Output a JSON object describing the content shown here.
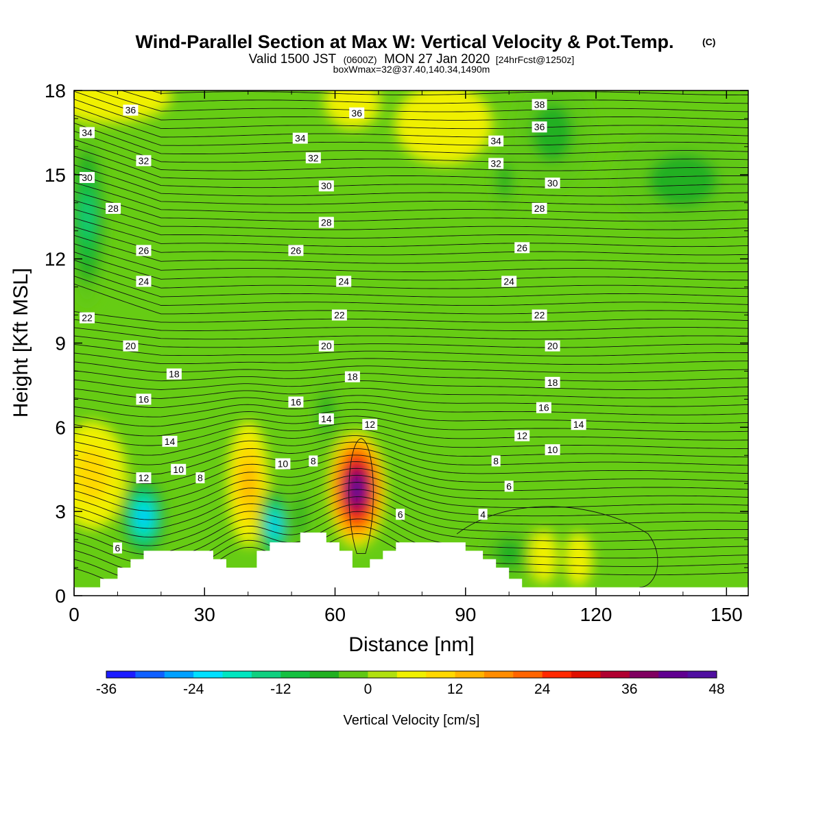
{
  "chart_data": {
    "type": "heatmap",
    "title": "Wind-Parallel Section at Max W: Vertical Velocity & Pot.Temp.",
    "title_mark": "(C)",
    "subtitle": {
      "pre": "Valid 1500 JST",
      "utc": "(0600Z)",
      "date": "MON 27 Jan 2020",
      "fcst": "[24hrFcst@1250z]"
    },
    "subtitle2": "boxWmax=32@37.40,140.34,1490m",
    "xlabel": "Distance [nm]",
    "ylabel": "Height [Kft MSL]",
    "xlim": [
      0,
      155
    ],
    "ylim": [
      0,
      18
    ],
    "xticks": [
      "0",
      "30",
      "60",
      "90",
      "120",
      "150"
    ],
    "yticks": [
      "0",
      "3",
      "6",
      "9",
      "12",
      "15",
      "18"
    ],
    "background_color": "#66cc14",
    "terrain_color": "#ffffff",
    "colorbar": {
      "title": "Vertical Velocity [cm/s]",
      "min": -36,
      "max": 48,
      "step": 4,
      "tick_labels": [
        "-36",
        "-24",
        "-12",
        "0",
        "12",
        "24",
        "36",
        "48"
      ],
      "colors": [
        "#1c1cff",
        "#1060ff",
        "#00a0ff",
        "#00e0ff",
        "#00e6c0",
        "#10d080",
        "#14c040",
        "#20b020",
        "#60c814",
        "#b0e010",
        "#f0f000",
        "#ffd800",
        "#ffb400",
        "#ff8c00",
        "#ff6400",
        "#ff2800",
        "#e01000",
        "#b00030",
        "#800060",
        "#600090",
        "#5010a0"
      ]
    },
    "terrain": [
      [
        0,
        0.3
      ],
      [
        6,
        0.3
      ],
      [
        6,
        0.6
      ],
      [
        10,
        0.6
      ],
      [
        10,
        1.0
      ],
      [
        13,
        1.0
      ],
      [
        13,
        1.3
      ],
      [
        16,
        1.3
      ],
      [
        16,
        1.6
      ],
      [
        32,
        1.6
      ],
      [
        32,
        1.3
      ],
      [
        35,
        1.3
      ],
      [
        35,
        1.0
      ],
      [
        42,
        1.0
      ],
      [
        42,
        1.6
      ],
      [
        45,
        1.6
      ],
      [
        45,
        1.9
      ],
      [
        52,
        1.9
      ],
      [
        52,
        2.25
      ],
      [
        58,
        2.25
      ],
      [
        58,
        1.9
      ],
      [
        61,
        1.9
      ],
      [
        61,
        1.6
      ],
      [
        64,
        1.6
      ],
      [
        64,
        1.0
      ],
      [
        68,
        1.0
      ],
      [
        68,
        1.3
      ],
      [
        71,
        1.3
      ],
      [
        71,
        1.6
      ],
      [
        74,
        1.6
      ],
      [
        74,
        1.9
      ],
      [
        90,
        1.9
      ],
      [
        90,
        1.6
      ],
      [
        94,
        1.6
      ],
      [
        94,
        1.3
      ],
      [
        97,
        1.3
      ],
      [
        97,
        1.0
      ],
      [
        100,
        1.0
      ],
      [
        100,
        0.6
      ],
      [
        103,
        0.6
      ],
      [
        103,
        0.3
      ],
      [
        155,
        0.3
      ]
    ],
    "w_cells": [
      {
        "x": 65,
        "y": 3.8,
        "sx": 4.2,
        "sy": 1.3,
        "value": 48
      },
      {
        "x": 4,
        "y": 4.3,
        "sx": 5,
        "sy": 1.2,
        "value": 8
      },
      {
        "x": 16,
        "y": 2.8,
        "sx": 3.5,
        "sy": 1.0,
        "value": -28
      },
      {
        "x": 40,
        "y": 4.0,
        "sx": 3,
        "sy": 1.4,
        "value": 12
      },
      {
        "x": 46,
        "y": 2.5,
        "sx": 2.3,
        "sy": 0.9,
        "value": -28
      },
      {
        "x": 3,
        "y": 13.5,
        "sx": 3,
        "sy": 2.0,
        "value": -16
      },
      {
        "x": 8,
        "y": 17.8,
        "sx": 9,
        "sy": 0.6,
        "value": 6
      },
      {
        "x": 85,
        "y": 16.8,
        "sx": 7,
        "sy": 0.9,
        "value": 6
      },
      {
        "x": 64,
        "y": 17.6,
        "sx": 4,
        "sy": 0.6,
        "value": 6
      },
      {
        "x": 110,
        "y": 16.5,
        "sx": 6,
        "sy": 1.3,
        "value": -8
      },
      {
        "x": 140,
        "y": 14.8,
        "sx": 10,
        "sy": 1.2,
        "value": -8
      },
      {
        "x": 100,
        "y": 1.5,
        "sx": 4,
        "sy": 0.7,
        "value": -8
      },
      {
        "x": 108,
        "y": 1.4,
        "sx": 2,
        "sy": 0.6,
        "value": 6
      },
      {
        "x": 116,
        "y": 1.3,
        "sx": 2,
        "sy": 0.6,
        "value": 6
      },
      {
        "x": 52,
        "y": 2.8,
        "sx": 1.5,
        "sy": 1.0,
        "value": -8
      },
      {
        "x": 58,
        "y": 6.5,
        "sx": 2,
        "sy": 0.9,
        "value": -6
      },
      {
        "x": 80,
        "y": 6.2,
        "sx": 3,
        "sy": 0.6,
        "value": 2
      },
      {
        "x": 80,
        "y": 12.5,
        "sx": 5,
        "sy": 0.8,
        "value": 2
      },
      {
        "x": 25,
        "y": 12.5,
        "sx": 4,
        "sy": 0.6,
        "value": 2
      },
      {
        "x": 50,
        "y": 14.0,
        "sx": 5,
        "sy": 3.0,
        "value": 2
      },
      {
        "x": 99,
        "y": 14.8,
        "sx": 2,
        "sy": 0.8,
        "value": -6
      }
    ],
    "theta_contour_labels": [
      {
        "text": "36",
        "x": 13,
        "y": 17.3
      },
      {
        "text": "36",
        "x": 65,
        "y": 17.2
      },
      {
        "text": "36",
        "x": 107,
        "y": 16.7
      },
      {
        "text": "38",
        "x": 107,
        "y": 17.5
      },
      {
        "text": "34",
        "x": 3,
        "y": 16.5
      },
      {
        "text": "34",
        "x": 52,
        "y": 16.3
      },
      {
        "text": "34",
        "x": 97,
        "y": 16.2
      },
      {
        "text": "32",
        "x": 16,
        "y": 15.5
      },
      {
        "text": "32",
        "x": 55,
        "y": 15.6
      },
      {
        "text": "32",
        "x": 97,
        "y": 15.4
      },
      {
        "text": "30",
        "x": 3,
        "y": 14.9
      },
      {
        "text": "30",
        "x": 58,
        "y": 14.6
      },
      {
        "text": "30",
        "x": 110,
        "y": 14.7
      },
      {
        "text": "28",
        "x": 9,
        "y": 13.8
      },
      {
        "text": "28",
        "x": 58,
        "y": 13.3
      },
      {
        "text": "28",
        "x": 107,
        "y": 13.8
      },
      {
        "text": "26",
        "x": 16,
        "y": 12.3
      },
      {
        "text": "26",
        "x": 51,
        "y": 12.3
      },
      {
        "text": "26",
        "x": 103,
        "y": 12.4
      },
      {
        "text": "24",
        "x": 16,
        "y": 11.2
      },
      {
        "text": "24",
        "x": 62,
        "y": 11.2
      },
      {
        "text": "24",
        "x": 100,
        "y": 11.2
      },
      {
        "text": "22",
        "x": 3,
        "y": 9.9
      },
      {
        "text": "22",
        "x": 61,
        "y": 10.0
      },
      {
        "text": "22",
        "x": 107,
        "y": 10.0
      },
      {
        "text": "20",
        "x": 13,
        "y": 8.9
      },
      {
        "text": "20",
        "x": 58,
        "y": 8.9
      },
      {
        "text": "20",
        "x": 110,
        "y": 8.9
      },
      {
        "text": "18",
        "x": 23,
        "y": 7.9
      },
      {
        "text": "18",
        "x": 64,
        "y": 7.8
      },
      {
        "text": "18",
        "x": 110,
        "y": 7.6
      },
      {
        "text": "16",
        "x": 16,
        "y": 7.0
      },
      {
        "text": "16",
        "x": 51,
        "y": 6.9
      },
      {
        "text": "16",
        "x": 108,
        "y": 6.7
      },
      {
        "text": "14",
        "x": 22,
        "y": 5.5
      },
      {
        "text": "14",
        "x": 58,
        "y": 6.3
      },
      {
        "text": "14",
        "x": 116,
        "y": 6.1
      },
      {
        "text": "12",
        "x": 68,
        "y": 6.1
      },
      {
        "text": "12",
        "x": 103,
        "y": 5.7
      },
      {
        "text": "12",
        "x": 16,
        "y": 4.2
      },
      {
        "text": "10",
        "x": 24,
        "y": 4.5
      },
      {
        "text": "10",
        "x": 48,
        "y": 4.7
      },
      {
        "text": "10",
        "x": 110,
        "y": 5.2
      },
      {
        "text": "8",
        "x": 29,
        "y": 4.2
      },
      {
        "text": "8",
        "x": 55,
        "y": 4.8
      },
      {
        "text": "8",
        "x": 97,
        "y": 4.8
      },
      {
        "text": "6",
        "x": 10,
        "y": 1.7
      },
      {
        "text": "6",
        "x": 100,
        "y": 3.9
      },
      {
        "text": "6",
        "x": 75,
        "y": 2.9
      },
      {
        "text": "4",
        "x": 94,
        "y": 2.9
      }
    ]
  }
}
